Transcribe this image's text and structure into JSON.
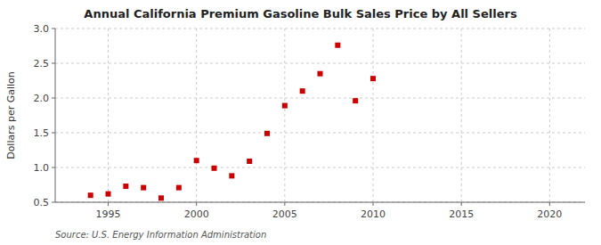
{
  "chart_data": {
    "type": "scatter",
    "title": "Annual California Premium Gasoline Bulk Sales Price by All Sellers",
    "ylabel": "Dollars per Gallon",
    "annotations": [
      "Source: U.S. Energy Information Administration"
    ],
    "x": [
      1994,
      1995,
      1996,
      1997,
      1998,
      1999,
      2000,
      2001,
      2002,
      2003,
      2004,
      2005,
      2006,
      2007,
      2008,
      2009,
      2010
    ],
    "values": [
      0.6,
      0.62,
      0.73,
      0.71,
      0.56,
      0.71,
      1.1,
      0.99,
      0.88,
      1.09,
      1.49,
      1.89,
      2.1,
      2.35,
      2.76,
      1.96,
      2.28
    ],
    "color": "#cc0000",
    "marker": "square",
    "xlim": [
      1992,
      2022
    ],
    "ylim": [
      0.5,
      3.0
    ],
    "xticks": [
      1995,
      2000,
      2005,
      2010,
      2015,
      2020
    ],
    "yticks": [
      0.5,
      {
        "value": 1.0,
        "label": "1.0"
      },
      1.5,
      {
        "value": 2.0,
        "label": "2.0"
      },
      2.5,
      {
        "value": 3.0,
        "label": "3.0"
      }
    ],
    "grid": true
  }
}
